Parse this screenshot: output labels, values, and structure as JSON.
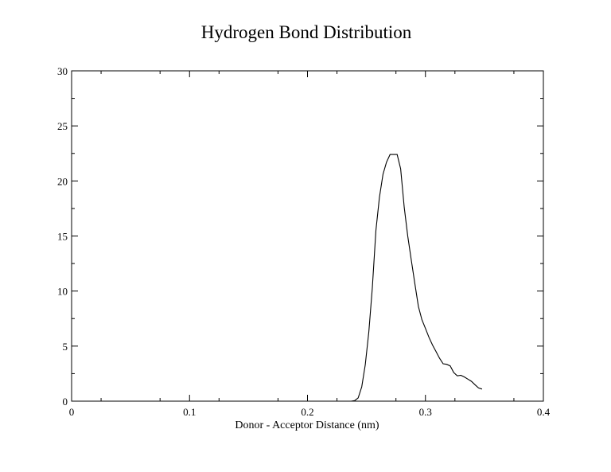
{
  "chart_data": {
    "type": "line",
    "title": "Hydrogen Bond Distribution",
    "xlabel": "Donor - Acceptor Distance (nm)",
    "ylabel": "",
    "xlim": [
      0,
      0.4
    ],
    "ylim": [
      0,
      30
    ],
    "x_ticks": [
      "0",
      "0.1",
      "0.2",
      "0.3",
      "0.4"
    ],
    "y_ticks": [
      "0",
      "5",
      "10",
      "15",
      "20",
      "25",
      "30"
    ],
    "x_minor_step": 0.05,
    "y_minor_step": 2.5,
    "grid": false,
    "series": [
      {
        "name": "",
        "x": [
          0.237,
          0.24,
          0.243,
          0.246,
          0.249,
          0.252,
          0.255,
          0.258,
          0.261,
          0.264,
          0.267,
          0.27,
          0.273,
          0.276,
          0.279,
          0.282,
          0.285,
          0.288,
          0.291,
          0.294,
          0.297,
          0.3,
          0.303,
          0.306,
          0.309,
          0.312,
          0.315,
          0.318,
          0.321,
          0.324,
          0.327,
          0.33,
          0.333,
          0.336,
          0.339,
          0.342,
          0.345,
          0.348
        ],
        "y": [
          0.0,
          0.05,
          0.3,
          1.3,
          3.3,
          6.3,
          10.3,
          15.5,
          18.5,
          20.6,
          21.7,
          22.4,
          22.4,
          22.4,
          21.1,
          17.6,
          15.0,
          12.8,
          10.7,
          8.6,
          7.4,
          6.6,
          5.8,
          5.1,
          4.5,
          3.9,
          3.4,
          3.35,
          3.2,
          2.6,
          2.3,
          2.35,
          2.2,
          2.0,
          1.8,
          1.5,
          1.2,
          1.1
        ]
      }
    ]
  }
}
